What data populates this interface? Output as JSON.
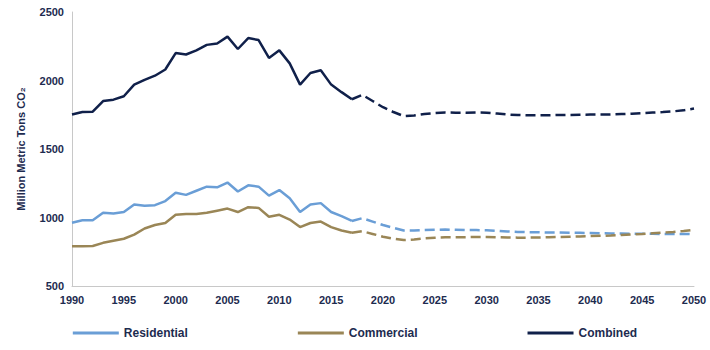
{
  "chart_data": {
    "type": "line",
    "y_label": "Million Metric Tons CO₂",
    "x": [
      1990,
      1991,
      1992,
      1993,
      1994,
      1995,
      1996,
      1997,
      1998,
      1999,
      2000,
      2001,
      2002,
      2003,
      2004,
      2005,
      2006,
      2007,
      2008,
      2009,
      2010,
      2011,
      2012,
      2013,
      2014,
      2015,
      2016,
      2017,
      2018,
      2019,
      2020,
      2021,
      2022,
      2023,
      2024,
      2025,
      2026,
      2027,
      2028,
      2029,
      2030,
      2031,
      2032,
      2033,
      2034,
      2035,
      2036,
      2037,
      2038,
      2039,
      2040,
      2041,
      2042,
      2043,
      2044,
      2045,
      2046,
      2047,
      2048,
      2049,
      2050
    ],
    "xlim": [
      1990,
      2050
    ],
    "xticks": [
      1990,
      1995,
      2000,
      2005,
      2010,
      2015,
      2020,
      2025,
      2030,
      2035,
      2040,
      2045,
      2050
    ],
    "ylim": [
      500,
      2500
    ],
    "yticks": [
      500,
      1000,
      1500,
      2000,
      2500
    ],
    "grid": false,
    "legend": "bottom",
    "series": [
      {
        "name": "Residential",
        "color": "#6a9ed6",
        "line_style": "solid",
        "values": [
          962,
          980,
          980,
          1035,
          1030,
          1040,
          1095,
          1085,
          1090,
          1120,
          1180,
          1165,
          1195,
          1225,
          1220,
          1255,
          1190,
          1235,
          1225,
          1160,
          1200,
          1140,
          1040,
          1095,
          1105,
          1040,
          1010,
          975,
          null,
          null,
          null,
          null,
          null,
          null,
          null,
          null,
          null,
          null,
          null,
          null,
          null,
          null,
          null,
          null,
          null,
          null,
          null,
          null,
          null,
          null,
          null,
          null,
          null,
          null,
          null,
          null,
          null,
          null,
          null,
          null,
          null
        ]
      },
      {
        "name": "Residential",
        "color": "#6a9ed6",
        "line_style": "dashed",
        "values": [
          null,
          null,
          null,
          null,
          null,
          null,
          null,
          null,
          null,
          null,
          null,
          null,
          null,
          null,
          null,
          null,
          null,
          null,
          null,
          null,
          null,
          null,
          null,
          null,
          null,
          null,
          null,
          975,
          995,
          970,
          945,
          925,
          905,
          905,
          908,
          910,
          912,
          910,
          908,
          908,
          907,
          903,
          898,
          895,
          893,
          892,
          890,
          890,
          889,
          888,
          887,
          885,
          884,
          883,
          882,
          882,
          881,
          880,
          880,
          880,
          878
        ]
      },
      {
        "name": "Commercial",
        "color": "#9a8656",
        "line_style": "solid",
        "values": [
          790,
          790,
          792,
          815,
          830,
          845,
          875,
          920,
          945,
          960,
          1020,
          1025,
          1025,
          1035,
          1050,
          1065,
          1040,
          1075,
          1070,
          1005,
          1020,
          985,
          930,
          960,
          970,
          930,
          905,
          888,
          null,
          null,
          null,
          null,
          null,
          null,
          null,
          null,
          null,
          null,
          null,
          null,
          null,
          null,
          null,
          null,
          null,
          null,
          null,
          null,
          null,
          null,
          null,
          null,
          null,
          null,
          null,
          null,
          null,
          null,
          null,
          null,
          null
        ]
      },
      {
        "name": "Commercial",
        "color": "#9a8656",
        "line_style": "dashed",
        "values": [
          null,
          null,
          null,
          null,
          null,
          null,
          null,
          null,
          null,
          null,
          null,
          null,
          null,
          null,
          null,
          null,
          null,
          null,
          null,
          null,
          null,
          null,
          null,
          null,
          null,
          null,
          null,
          888,
          900,
          880,
          860,
          845,
          835,
          840,
          848,
          852,
          855,
          855,
          856,
          858,
          858,
          856,
          854,
          853,
          853,
          854,
          856,
          858,
          860,
          862,
          864,
          866,
          868,
          872,
          876,
          880,
          885,
          890,
          895,
          902,
          910
        ]
      },
      {
        "name": "Combined",
        "color": "#10204a",
        "line_style": "solid",
        "values": [
          1752,
          1770,
          1772,
          1850,
          1860,
          1885,
          1970,
          2005,
          2035,
          2080,
          2200,
          2190,
          2220,
          2260,
          2270,
          2320,
          2230,
          2310,
          2295,
          2165,
          2220,
          2125,
          1970,
          2055,
          2075,
          1970,
          1915,
          1863,
          null,
          null,
          null,
          null,
          null,
          null,
          null,
          null,
          null,
          null,
          null,
          null,
          null,
          null,
          null,
          null,
          null,
          null,
          null,
          null,
          null,
          null,
          null,
          null,
          null,
          null,
          null,
          null,
          null,
          null,
          null,
          null,
          null
        ]
      },
      {
        "name": "Combined",
        "color": "#10204a",
        "line_style": "dashed",
        "values": [
          null,
          null,
          null,
          null,
          null,
          null,
          null,
          null,
          null,
          null,
          null,
          null,
          null,
          null,
          null,
          null,
          null,
          null,
          null,
          null,
          null,
          null,
          null,
          null,
          null,
          null,
          null,
          1863,
          1895,
          1850,
          1805,
          1770,
          1740,
          1745,
          1756,
          1762,
          1767,
          1765,
          1764,
          1766,
          1765,
          1759,
          1752,
          1748,
          1746,
          1746,
          1746,
          1748,
          1749,
          1750,
          1751,
          1751,
          1752,
          1755,
          1758,
          1762,
          1766,
          1770,
          1775,
          1782,
          1795
        ]
      }
    ]
  }
}
